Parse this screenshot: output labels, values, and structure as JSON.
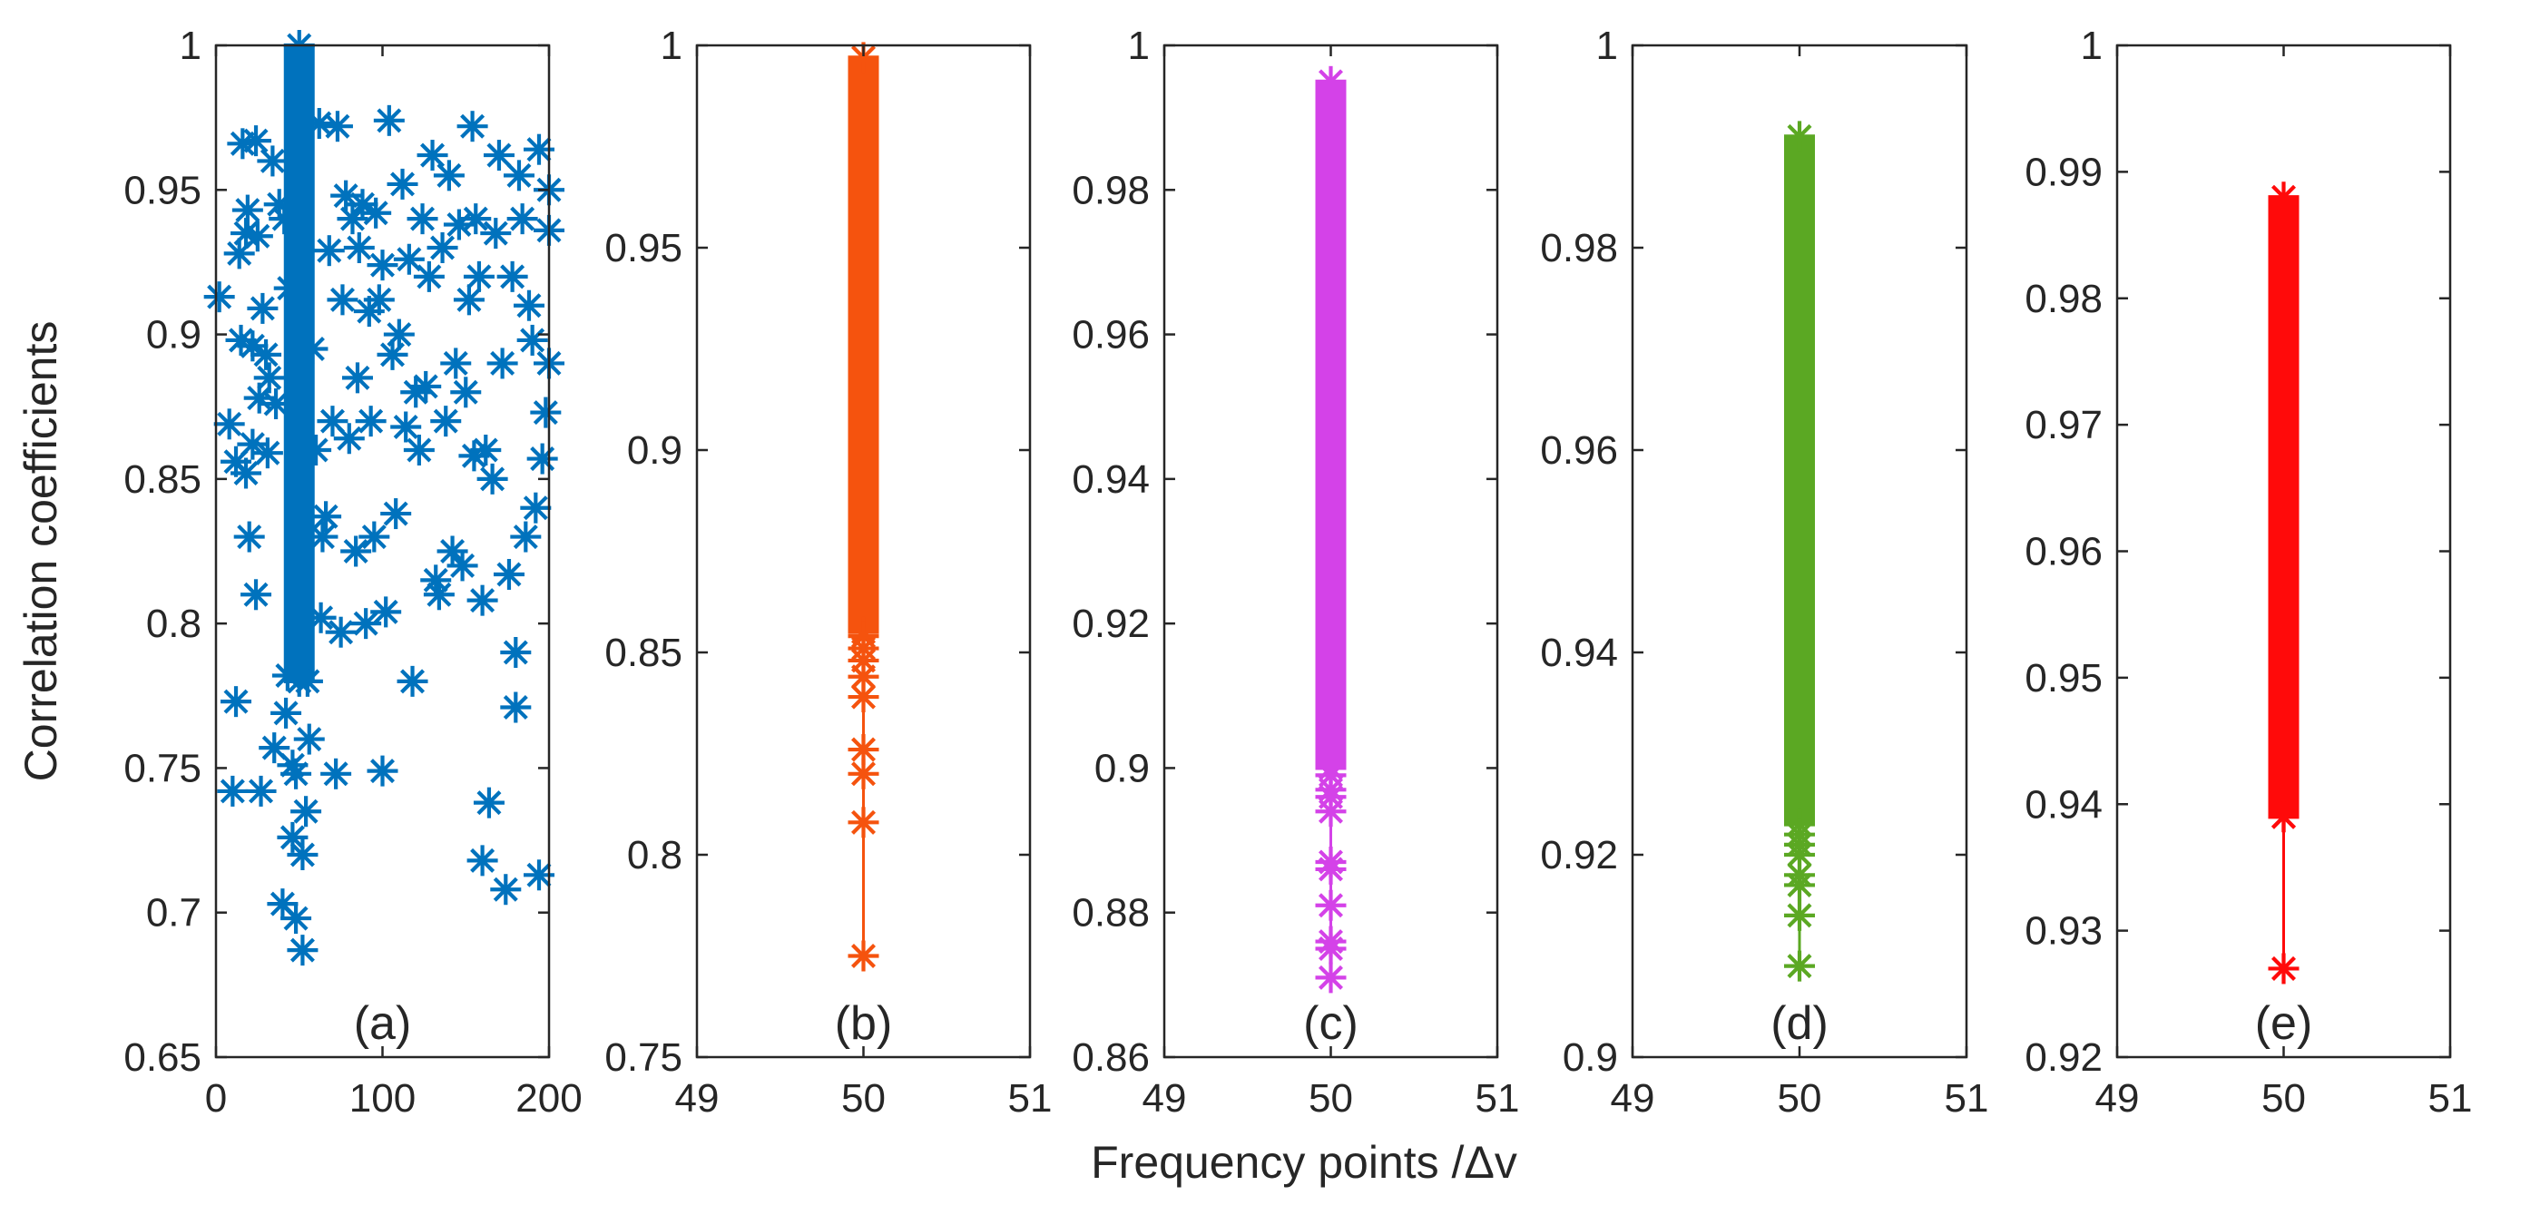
{
  "chart_data": {
    "ylabel": "Correlation coefficients",
    "xlabel": "Frequency points /Δv",
    "panels": [
      {
        "tag": "(a)",
        "type": "scatter",
        "color": "#0072BD",
        "marker": "asterisk",
        "xlim": [
          0,
          200
        ],
        "ylim": [
          0.65,
          1
        ],
        "xticks": [
          0,
          100,
          200
        ],
        "xtick_labels": [
          "0",
          "100",
          "200"
        ],
        "yticks": [
          0.65,
          0.7,
          0.75,
          0.8,
          0.85,
          0.9,
          0.95,
          1
        ],
        "ytick_labels": [
          "0.65",
          "0.7",
          "0.75",
          "0.8",
          "0.85",
          "0.9",
          "0.95",
          "1"
        ],
        "dense_column": {
          "x": 50,
          "y_min": 0.78,
          "y_max": 1.0
        },
        "points": [
          [
            2,
            0.913
          ],
          [
            8,
            0.869
          ],
          [
            10,
            0.742
          ],
          [
            12,
            0.856
          ],
          [
            12,
            0.773
          ],
          [
            14,
            0.928
          ],
          [
            15,
            0.898
          ],
          [
            16,
            0.966
          ],
          [
            18,
            0.935
          ],
          [
            18,
            0.852
          ],
          [
            19,
            0.943
          ],
          [
            20,
            0.83
          ],
          [
            22,
            0.896
          ],
          [
            22,
            0.862
          ],
          [
            24,
            0.967
          ],
          [
            24,
            0.81
          ],
          [
            25,
            0.934
          ],
          [
            26,
            0.878
          ],
          [
            27,
            0.742
          ],
          [
            28,
            0.909
          ],
          [
            30,
            0.893
          ],
          [
            31,
            0.859
          ],
          [
            32,
            0.885
          ],
          [
            34,
            0.96
          ],
          [
            35,
            0.757
          ],
          [
            36,
            0.876
          ],
          [
            38,
            0.945
          ],
          [
            40,
            0.703
          ],
          [
            41,
            0.94
          ],
          [
            42,
            0.769
          ],
          [
            43,
            0.782
          ],
          [
            44,
            0.916
          ],
          [
            46,
            0.751
          ],
          [
            46,
            0.726
          ],
          [
            48,
            0.748
          ],
          [
            48,
            0.698
          ],
          [
            52,
            0.687
          ],
          [
            52,
            0.72
          ],
          [
            54,
            0.735
          ],
          [
            55,
            0.78
          ],
          [
            56,
            0.76
          ],
          [
            58,
            0.895
          ],
          [
            60,
            0.86
          ],
          [
            62,
            0.973
          ],
          [
            63,
            0.802
          ],
          [
            64,
            0.83
          ],
          [
            66,
            0.837
          ],
          [
            68,
            0.929
          ],
          [
            70,
            0.87
          ],
          [
            72,
            0.748
          ],
          [
            73,
            0.972
          ],
          [
            75,
            0.797
          ],
          [
            76,
            0.912
          ],
          [
            78,
            0.948
          ],
          [
            80,
            0.864
          ],
          [
            82,
            0.94
          ],
          [
            84,
            0.825
          ],
          [
            85,
            0.885
          ],
          [
            86,
            0.93
          ],
          [
            88,
            0.945
          ],
          [
            90,
            0.8
          ],
          [
            92,
            0.908
          ],
          [
            93,
            0.87
          ],
          [
            95,
            0.83
          ],
          [
            96,
            0.942
          ],
          [
            98,
            0.912
          ],
          [
            100,
            0.749
          ],
          [
            100,
            0.924
          ],
          [
            102,
            0.804
          ],
          [
            104,
            0.974
          ],
          [
            106,
            0.893
          ],
          [
            108,
            0.838
          ],
          [
            110,
            0.9
          ],
          [
            112,
            0.952
          ],
          [
            114,
            0.868
          ],
          [
            116,
            0.926
          ],
          [
            118,
            0.78
          ],
          [
            120,
            0.88
          ],
          [
            122,
            0.86
          ],
          [
            124,
            0.94
          ],
          [
            126,
            0.882
          ],
          [
            128,
            0.92
          ],
          [
            130,
            0.962
          ],
          [
            132,
            0.815
          ],
          [
            134,
            0.81
          ],
          [
            136,
            0.93
          ],
          [
            138,
            0.87
          ],
          [
            140,
            0.955
          ],
          [
            142,
            0.825
          ],
          [
            144,
            0.89
          ],
          [
            146,
            0.938
          ],
          [
            148,
            0.82
          ],
          [
            150,
            0.88
          ],
          [
            152,
            0.912
          ],
          [
            154,
            0.972
          ],
          [
            155,
            0.858
          ],
          [
            156,
            0.94
          ],
          [
            158,
            0.92
          ],
          [
            160,
            0.808
          ],
          [
            160,
            0.718
          ],
          [
            162,
            0.86
          ],
          [
            164,
            0.738
          ],
          [
            166,
            0.85
          ],
          [
            168,
            0.935
          ],
          [
            170,
            0.962
          ],
          [
            172,
            0.89
          ],
          [
            174,
            0.708
          ],
          [
            176,
            0.817
          ],
          [
            178,
            0.92
          ],
          [
            180,
            0.79
          ],
          [
            180,
            0.771
          ],
          [
            182,
            0.955
          ],
          [
            184,
            0.94
          ],
          [
            186,
            0.83
          ],
          [
            188,
            0.91
          ],
          [
            190,
            0.898
          ],
          [
            192,
            0.84
          ],
          [
            194,
            0.964
          ],
          [
            194,
            0.713
          ],
          [
            196,
            0.857
          ],
          [
            198,
            0.873
          ],
          [
            200,
            0.95
          ],
          [
            200,
            0.936
          ],
          [
            200,
            0.89
          ]
        ]
      },
      {
        "tag": "(b)",
        "type": "stem",
        "color": "#F5530E",
        "marker": "asterisk",
        "xlim": [
          49,
          51
        ],
        "ylim": [
          0.75,
          1
        ],
        "xticks": [
          49,
          50,
          51
        ],
        "xtick_labels": [
          "49",
          "50",
          "51"
        ],
        "yticks": [
          0.75,
          0.8,
          0.85,
          0.9,
          0.95,
          1
        ],
        "ytick_labels": [
          "0.75",
          "0.8",
          "0.85",
          "0.9",
          "0.95",
          "1"
        ],
        "x": 50,
        "dense_range": [
          0.855,
          0.997
        ],
        "y_values": [
          0.775,
          0.808,
          0.82,
          0.826,
          0.839,
          0.844,
          0.848,
          0.851,
          0.854
        ]
      },
      {
        "tag": "(c)",
        "type": "stem",
        "color": "#D442E8",
        "marker": "asterisk",
        "xlim": [
          49,
          51
        ],
        "ylim": [
          0.86,
          1
        ],
        "xticks": [
          49,
          50,
          51
        ],
        "xtick_labels": [
          "49",
          "50",
          "51"
        ],
        "yticks": [
          0.86,
          0.88,
          0.9,
          0.92,
          0.94,
          0.96,
          0.98,
          1
        ],
        "ytick_labels": [
          "0.86",
          "0.88",
          "0.9",
          "0.92",
          "0.94",
          "0.96",
          "0.98",
          "1"
        ],
        "x": 50,
        "dense_range": [
          0.9,
          0.995
        ],
        "y_values": [
          0.871,
          0.875,
          0.876,
          0.881,
          0.886,
          0.887,
          0.894,
          0.896,
          0.897,
          0.899
        ]
      },
      {
        "tag": "(d)",
        "type": "stem",
        "color": "#5BA823",
        "marker": "asterisk",
        "xlim": [
          49,
          51
        ],
        "ylim": [
          0.9,
          1
        ],
        "xticks": [
          49,
          50,
          51
        ],
        "xtick_labels": [
          "49",
          "50",
          "51"
        ],
        "yticks": [
          0.9,
          0.92,
          0.94,
          0.96,
          0.98,
          1
        ],
        "ytick_labels": [
          "0.9",
          "0.92",
          "0.94",
          "0.96",
          "0.98",
          "1"
        ],
        "x": 50,
        "dense_range": [
          0.923,
          0.991
        ],
        "y_values": [
          0.909,
          0.914,
          0.917,
          0.918,
          0.92,
          0.921,
          0.922
        ]
      },
      {
        "tag": "(e)",
        "type": "stem",
        "color": "#FF0A0A",
        "marker": "asterisk",
        "xlim": [
          49,
          51
        ],
        "ylim": [
          0.92,
          1
        ],
        "xticks": [
          49,
          50,
          51
        ],
        "xtick_labels": [
          "49",
          "50",
          "51"
        ],
        "yticks": [
          0.92,
          0.93,
          0.94,
          0.95,
          0.96,
          0.97,
          0.98,
          0.99,
          1
        ],
        "ytick_labels": [
          "0.92",
          "0.93",
          "0.94",
          "0.95",
          "0.96",
          "0.97",
          "0.98",
          "0.99",
          "1"
        ],
        "x": 50,
        "dense_range": [
          0.939,
          0.988
        ],
        "y_values": [
          0.927,
          0.939
        ]
      }
    ]
  }
}
